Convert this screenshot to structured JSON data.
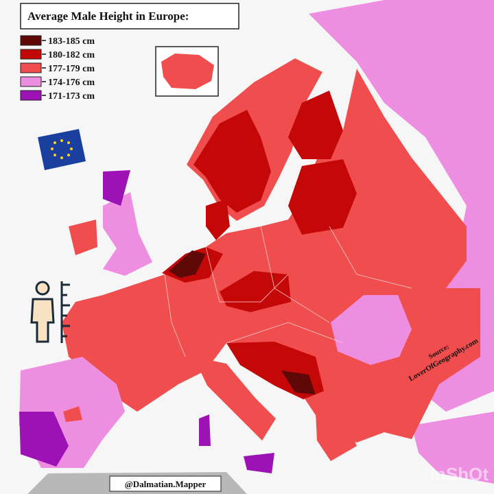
{
  "title": "Average Male Height in Europe:",
  "legend": [
    {
      "label": "183-185 cm",
      "color": "#5e0808"
    },
    {
      "label": "180-182 cm",
      "color": "#c40808"
    },
    {
      "label": "177-179 cm",
      "color": "#f04e4e"
    },
    {
      "label": "174-176 cm",
      "color": "#ee8ee0"
    },
    {
      "label": "171-173 cm",
      "color": "#9c12b4"
    }
  ],
  "source": {
    "label": "Source:",
    "site": "LoverOfGeography.com"
  },
  "credit": "@Dalmatian.Mapper",
  "watermark": "InShOt"
}
